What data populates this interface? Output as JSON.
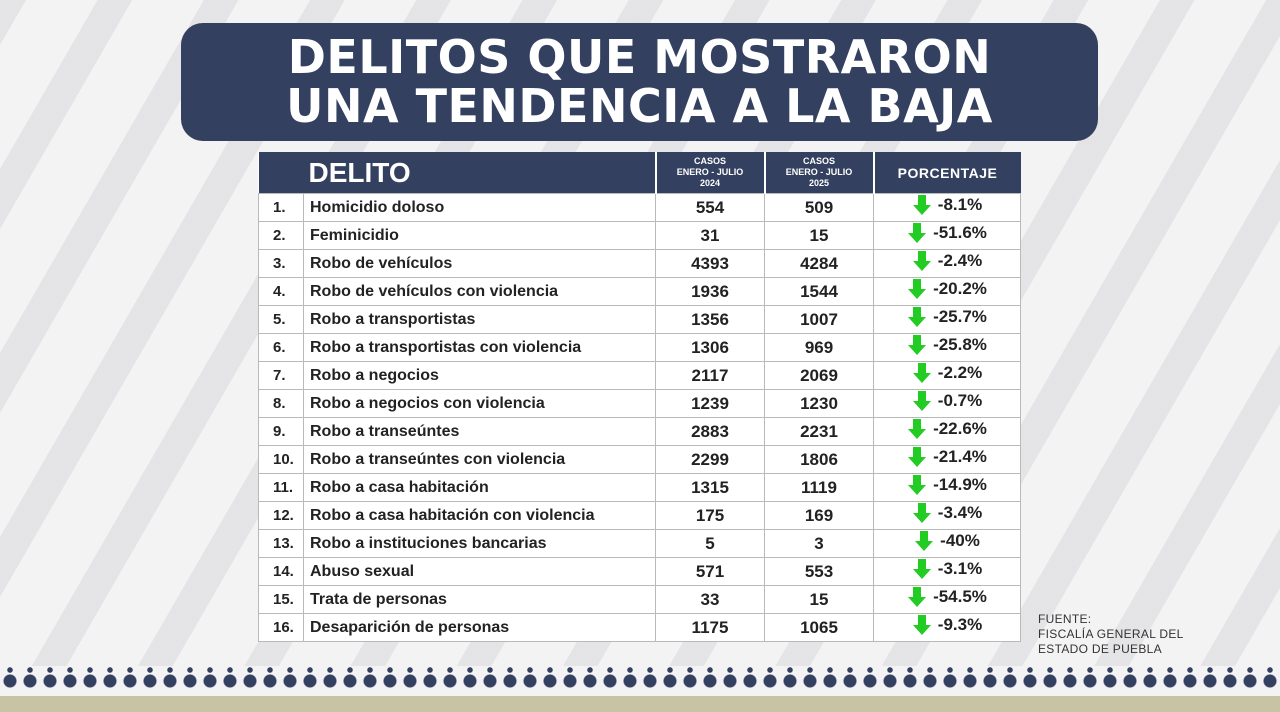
{
  "title": {
    "line1": "DELITOS QUE MOSTRARON",
    "line2": "UNA TENDENCIA A LA BAJA"
  },
  "table": {
    "headers": {
      "delito": "DELITO",
      "casos2024_l1": "CASOS",
      "casos2024_l2": "ENERO - JULIO",
      "casos2024_l3": "2024",
      "casos2025_l1": "CASOS",
      "casos2025_l2": "ENERO - JULIO",
      "casos2025_l3": "2025",
      "porcentaje": "PORCENTAJE"
    },
    "rows": [
      {
        "num": "1.",
        "delito": "Homicidio doloso",
        "c2024": "554",
        "c2025": "509",
        "pct": "-8.1%"
      },
      {
        "num": "2.",
        "delito": "Feminicidio",
        "c2024": "31",
        "c2025": "15",
        "pct": "-51.6%"
      },
      {
        "num": "3.",
        "delito": "Robo de vehículos",
        "c2024": "4393",
        "c2025": "4284",
        "pct": "-2.4%"
      },
      {
        "num": "4.",
        "delito": "Robo de vehículos con violencia",
        "c2024": "1936",
        "c2025": "1544",
        "pct": "-20.2%"
      },
      {
        "num": "5.",
        "delito": "Robo a transportistas",
        "c2024": "1356",
        "c2025": "1007",
        "pct": "-25.7%"
      },
      {
        "num": "6.",
        "delito": "Robo a transportistas con violencia",
        "c2024": "1306",
        "c2025": "969",
        "pct": "-25.8%"
      },
      {
        "num": "7.",
        "delito": "Robo a negocios",
        "c2024": "2117",
        "c2025": "2069",
        "pct": "-2.2%"
      },
      {
        "num": "8.",
        "delito": "Robo a negocios con violencia",
        "c2024": "1239",
        "c2025": "1230",
        "pct": "-0.7%"
      },
      {
        "num": "9.",
        "delito": "Robo a transeúntes",
        "c2024": "2883",
        "c2025": "2231",
        "pct": "-22.6%"
      },
      {
        "num": "10.",
        "delito": "Robo a transeúntes con violencia",
        "c2024": "2299",
        "c2025": "1806",
        "pct": "-21.4%"
      },
      {
        "num": "11.",
        "delito": "Robo a casa habitación",
        "c2024": "1315",
        "c2025": "1119",
        "pct": "-14.9%"
      },
      {
        "num": "12.",
        "delito": "Robo a casa habitación con violencia",
        "c2024": "175",
        "c2025": "169",
        "pct": "-3.4%"
      },
      {
        "num": "13.",
        "delito": "Robo a instituciones bancarias",
        "c2024": "5",
        "c2025": "3",
        "pct": "-40%"
      },
      {
        "num": "14.",
        "delito": "Abuso sexual",
        "c2024": "571",
        "c2025": "553",
        "pct": "-3.1%"
      },
      {
        "num": "15.",
        "delito": "Trata de personas",
        "c2024": "33",
        "c2025": "15",
        "pct": "-54.5%"
      },
      {
        "num": "16.",
        "delito": "Desaparición de personas",
        "c2024": "1175",
        "c2025": "1065",
        "pct": "-9.3%"
      }
    ]
  },
  "source": {
    "line1": "FUENTE:",
    "line2": "FISCALÍA GENERAL DEL",
    "line3": "ESTADO DE PUEBLA"
  },
  "colors": {
    "navy": "#344060",
    "arrow_green": "#22cc22"
  },
  "icons": {
    "trend": "down-arrow-icon"
  }
}
